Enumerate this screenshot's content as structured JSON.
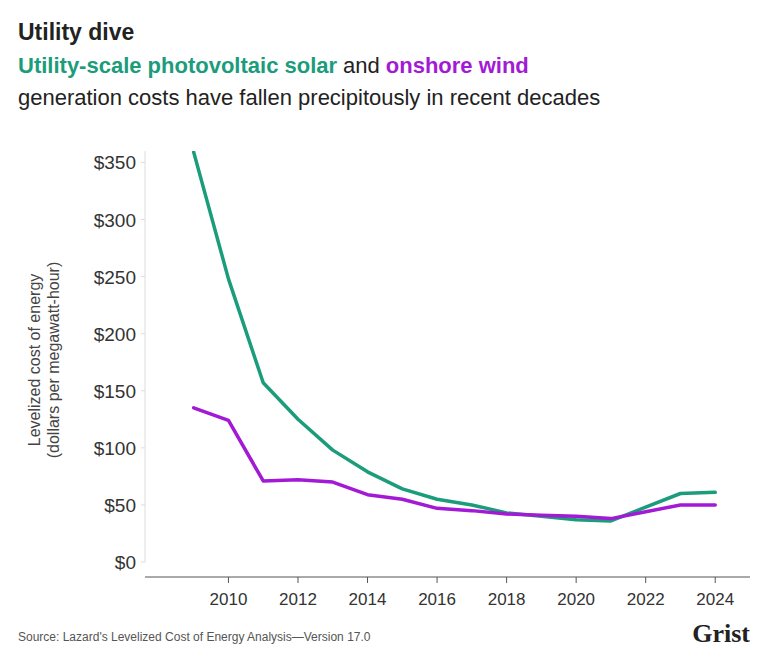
{
  "chart_data": {
    "type": "line",
    "title": "Utility dive",
    "subtitle_joiner": "and",
    "subtitle": "generation costs have fallen precipitously in recent decades",
    "ylabel": [
      "Levelized cost of energy",
      "(dollars per megawatt-hour)"
    ],
    "source": "Source: Lazard's Levelized Cost of Energy Analysis—Version 17.0",
    "brand": "Grist",
    "x": [
      2009,
      2010,
      2011,
      2012,
      2013,
      2014,
      2015,
      2016,
      2017,
      2018,
      2019,
      2020,
      2021,
      2022,
      2023,
      2024
    ],
    "series": [
      {
        "name": "Utility-scale photovoltaic solar",
        "color": "#1b9c7b",
        "values": [
          359,
          248,
          157,
          125,
          98,
          79,
          64,
          55,
          50,
          43,
          40,
          37,
          36,
          48,
          60,
          61
        ]
      },
      {
        "name": "onshore wind",
        "color": "#a31ad6",
        "values": [
          135,
          124,
          71,
          72,
          70,
          59,
          55,
          47,
          45,
          42,
          41,
          40,
          38,
          44,
          50,
          50
        ]
      }
    ],
    "xlim": [
      2007.6,
      2025
    ],
    "xticks": [
      2010,
      2012,
      2014,
      2016,
      2018,
      2020,
      2022,
      2024
    ],
    "ylim": [
      0,
      360
    ],
    "yticks": [
      {
        "value": 0,
        "label": "$0"
      },
      {
        "value": 50,
        "label": "$50"
      },
      {
        "value": 100,
        "label": "$100"
      },
      {
        "value": 150,
        "label": "$150"
      },
      {
        "value": 200,
        "label": "$200"
      },
      {
        "value": 250,
        "label": "$250"
      },
      {
        "value": 300,
        "label": "$300"
      },
      {
        "value": 350,
        "label": "$350"
      }
    ],
    "grid": false
  }
}
